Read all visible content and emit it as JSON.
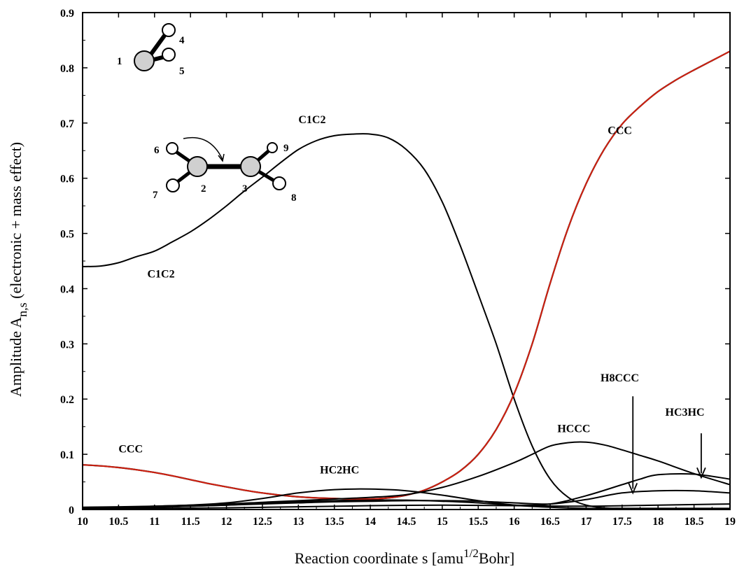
{
  "chart_data": {
    "type": "line",
    "xlabel_main": "Reaction coordinate s [amu",
    "xlabel_sup": "1/2",
    "xlabel_end": "Bohr]",
    "ylabel_main": "Amplitude A",
    "ylabel_sub": "n,s",
    "ylabel_end": " (electronic + mass effect)",
    "xlim": [
      10,
      19
    ],
    "ylim": [
      0,
      0.9
    ],
    "xticks": [
      "10",
      "10.5",
      "11",
      "11.5",
      "12",
      "12.5",
      "13",
      "13.5",
      "14",
      "14.5",
      "15",
      "15.5",
      "16",
      "16.5",
      "17",
      "17.5",
      "18",
      "18.5",
      "19"
    ],
    "yticks": [
      "0",
      "0.1",
      "0.2",
      "0.3",
      "0.4",
      "0.5",
      "0.6",
      "0.7",
      "0.8",
      "0.9"
    ],
    "series": [
      {
        "color": "#000000",
        "x": [
          10,
          10.25,
          10.5,
          10.75,
          11,
          11.25,
          11.5,
          11.75,
          12,
          12.25,
          12.5,
          12.75,
          13,
          13.25,
          13.5,
          13.75,
          14,
          14.25,
          14.5,
          14.75,
          15,
          15.25,
          15.5,
          15.75,
          16,
          16.25,
          16.5,
          16.75,
          17,
          17.25,
          17.5,
          17.75,
          18,
          18.25,
          18.5,
          18.75,
          19
        ],
        "y": [
          0.44,
          0.441,
          0.447,
          0.458,
          0.468,
          0.485,
          0.503,
          0.525,
          0.55,
          0.577,
          0.602,
          0.628,
          0.652,
          0.668,
          0.677,
          0.68,
          0.68,
          0.673,
          0.652,
          0.616,
          0.557,
          0.478,
          0.39,
          0.3,
          0.2,
          0.115,
          0.055,
          0.022,
          0.008,
          0.003,
          0.002,
          0.001,
          0.001,
          0.001,
          0.001,
          0.001,
          0.001
        ]
      },
      {
        "color": "#d02010",
        "x": [
          10,
          10.25,
          10.5,
          10.75,
          11,
          11.25,
          11.5,
          11.75,
          12,
          12.25,
          12.5,
          12.75,
          13,
          13.25,
          13.5,
          13.75,
          14,
          14.25,
          14.5,
          14.75,
          15,
          15.25,
          15.5,
          15.75,
          16,
          16.25,
          16.5,
          16.75,
          17,
          17.25,
          17.5,
          17.75,
          18,
          18.25,
          18.5,
          18.75,
          19
        ],
        "y": [
          0.081,
          0.079,
          0.076,
          0.072,
          0.067,
          0.061,
          0.054,
          0.047,
          0.041,
          0.035,
          0.03,
          0.026,
          0.023,
          0.021,
          0.02,
          0.019,
          0.019,
          0.021,
          0.026,
          0.035,
          0.05,
          0.07,
          0.1,
          0.145,
          0.21,
          0.3,
          0.41,
          0.51,
          0.59,
          0.652,
          0.698,
          0.73,
          0.757,
          0.778,
          0.796,
          0.813,
          0.83
        ]
      },
      {
        "color": "#000000",
        "x": [
          10,
          10.5,
          11,
          11.5,
          12,
          12.5,
          13,
          13.5,
          14,
          14.5,
          15,
          15.5,
          16,
          16.25,
          16.5,
          16.75,
          17,
          17.25,
          17.5,
          17.75,
          18,
          18.5,
          19
        ],
        "y": [
          0.004,
          0.005,
          0.006,
          0.008,
          0.01,
          0.013,
          0.016,
          0.019,
          0.022,
          0.027,
          0.04,
          0.06,
          0.085,
          0.1,
          0.115,
          0.121,
          0.122,
          0.117,
          0.108,
          0.098,
          0.088,
          0.065,
          0.045
        ]
      },
      {
        "color": "#000000",
        "x": [
          10,
          10.5,
          11,
          11.5,
          12,
          12.5,
          13,
          13.5,
          14,
          14.5,
          15,
          15.5,
          16,
          16.5,
          17,
          17.5,
          18,
          18.5,
          19
        ],
        "y": [
          0.003,
          0.004,
          0.006,
          0.008,
          0.012,
          0.02,
          0.03,
          0.036,
          0.037,
          0.034,
          0.026,
          0.016,
          0.008,
          0.004,
          0.002,
          0.002,
          0.002,
          0.002,
          0.002
        ]
      },
      {
        "color": "#000000",
        "x": [
          10,
          10.5,
          11,
          11.5,
          12,
          12.5,
          13,
          13.5,
          14,
          14.5,
          15,
          15.5,
          16,
          16.5,
          17,
          17.5,
          17.75,
          18,
          18.5,
          19
        ],
        "y": [
          0.002,
          0.003,
          0.004,
          0.006,
          0.008,
          0.011,
          0.014,
          0.016,
          0.017,
          0.017,
          0.015,
          0.012,
          0.008,
          0.01,
          0.025,
          0.045,
          0.055,
          0.063,
          0.064,
          0.055
        ]
      },
      {
        "color": "#000000",
        "x": [
          10,
          10.5,
          11,
          11.5,
          12,
          12.5,
          13,
          13.5,
          14,
          14.5,
          15,
          15.5,
          16,
          16.5,
          17,
          17.5,
          18,
          18.5,
          19
        ],
        "y": [
          0.003,
          0.004,
          0.005,
          0.006,
          0.008,
          0.01,
          0.012,
          0.014,
          0.015,
          0.016,
          0.016,
          0.015,
          0.012,
          0.01,
          0.018,
          0.03,
          0.034,
          0.034,
          0.03
        ]
      },
      {
        "color": "#000000",
        "x": [
          10,
          11,
          12,
          13,
          14,
          15,
          16,
          17,
          18,
          19
        ],
        "y": [
          0.001,
          0.002,
          0.003,
          0.005,
          0.007,
          0.008,
          0.007,
          0.006,
          0.008,
          0.01
        ]
      }
    ],
    "annotations": [
      {
        "text": "C1C2",
        "x": 13.0,
        "y": 0.7
      },
      {
        "text": "C1C2",
        "x": 10.9,
        "y": 0.42
      },
      {
        "text": "CCC",
        "x": 17.3,
        "y": 0.68
      },
      {
        "text": "CCC",
        "x": 10.5,
        "y": 0.103
      },
      {
        "text": "HC2HC",
        "x": 13.3,
        "y": 0.065
      },
      {
        "text": "HCCC",
        "x": 16.6,
        "y": 0.14
      },
      {
        "text": "H8CCC",
        "x": 17.2,
        "y": 0.232
      },
      {
        "text": "HC3HC",
        "x": 18.1,
        "y": 0.17
      }
    ],
    "arrows": [
      {
        "x": 17.65,
        "y_from": 0.205,
        "y_to": 0.03
      },
      {
        "x": 18.6,
        "y_from": 0.138,
        "y_to": 0.058
      }
    ],
    "molecule_labels": [
      "1",
      "4",
      "5",
      "6",
      "7",
      "2",
      "3",
      "9",
      "8"
    ]
  }
}
